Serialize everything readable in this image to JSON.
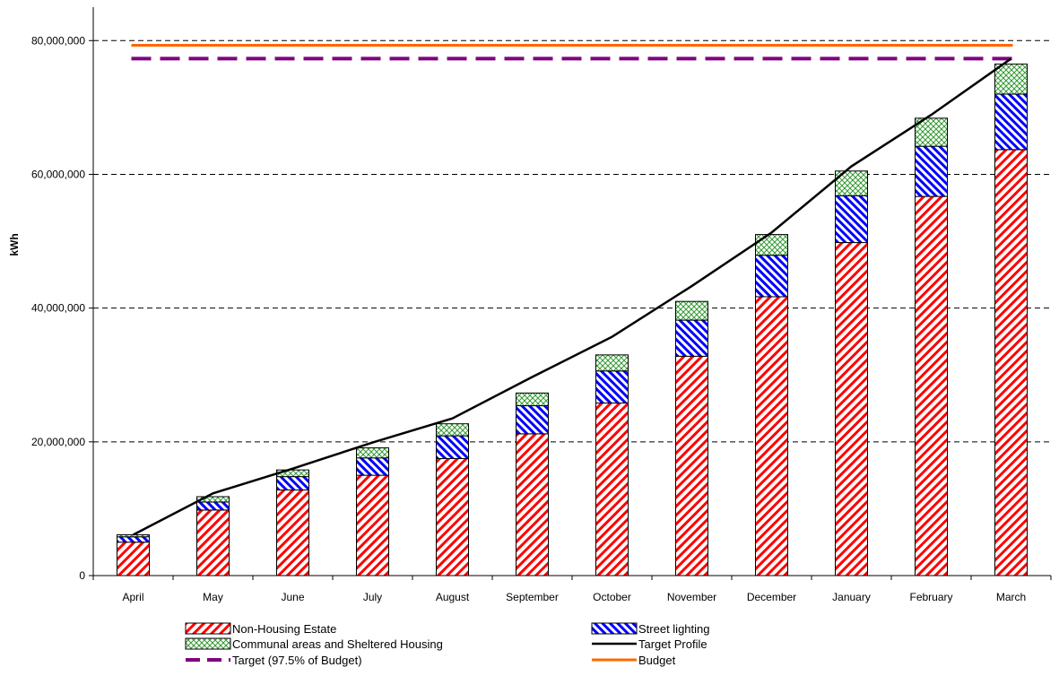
{
  "chart_data": {
    "type": "bar",
    "title": "",
    "xlabel": "",
    "ylabel": "kWh",
    "ylim": [
      0,
      85000000
    ],
    "yticks": [
      0,
      20000000,
      40000000,
      60000000,
      80000000
    ],
    "ytick_labels": [
      "0",
      "20,000,000",
      "40,000,000",
      "60,000,000",
      "80,000,000"
    ],
    "grid": "horizontal dashed",
    "legend_position": "bottom",
    "categories": [
      "April",
      "May",
      "June",
      "July",
      "August",
      "September",
      "October",
      "November",
      "December",
      "January",
      "February",
      "March"
    ],
    "series": [
      {
        "name": "Non-Housing Estate",
        "kind": "stacked-bar",
        "color": "#ff0000",
        "pattern": "diagonal-stripes",
        "values": [
          5000000,
          9800000,
          12800000,
          15000000,
          17500000,
          21200000,
          25800000,
          32800000,
          41700000,
          49800000,
          56700000,
          63700000
        ]
      },
      {
        "name": "Street lighting",
        "kind": "stacked-bar",
        "color": "#0000ff",
        "pattern": "diagonal-stripes",
        "values": [
          800000,
          1200000,
          2000000,
          2600000,
          3400000,
          4200000,
          4800000,
          5400000,
          6200000,
          7000000,
          7500000,
          8300000
        ]
      },
      {
        "name": "Communal areas and Sheltered Housing",
        "kind": "stacked-bar",
        "color": "#339933",
        "pattern": "crosshatch",
        "values": [
          300000,
          800000,
          1000000,
          1500000,
          1800000,
          1900000,
          2400000,
          2800000,
          3100000,
          3700000,
          4200000,
          4500000
        ]
      },
      {
        "name": "Target Profile",
        "kind": "line",
        "color": "#000000",
        "values": [
          6100000,
          12300000,
          16000000,
          19900000,
          23500000,
          29700000,
          35700000,
          43300000,
          51300000,
          61200000,
          68900000,
          77300000
        ]
      },
      {
        "name": "Target (97.5% of Budget)",
        "kind": "hline",
        "color": "#800080",
        "style": "dashed",
        "value": 77300000
      },
      {
        "name": "Budget",
        "kind": "hline",
        "color": "#ff6600",
        "style": "solid",
        "value": 79300000
      }
    ]
  }
}
